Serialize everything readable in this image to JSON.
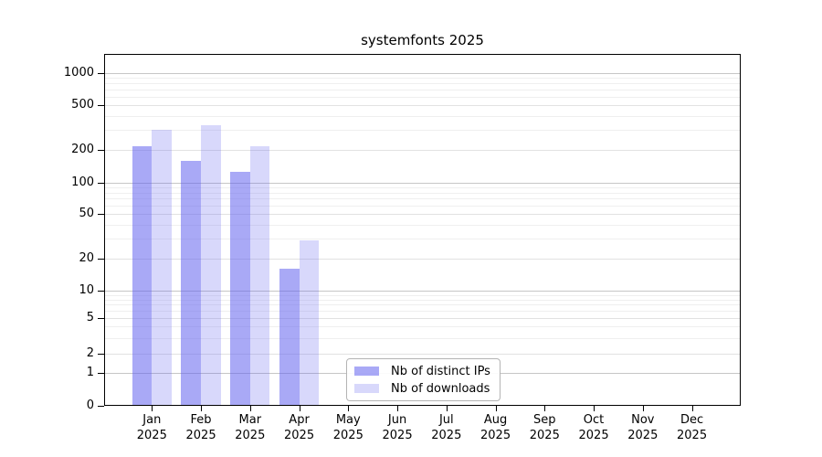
{
  "chart_data": {
    "type": "bar",
    "title": "systemfonts 2025",
    "x": [
      "Jan",
      "Feb",
      "Mar",
      "Apr",
      "May",
      "Jun",
      "Jul",
      "Aug",
      "Sep",
      "Oct",
      "Nov",
      "Dec"
    ],
    "x_year": "2025",
    "series": [
      {
        "name": "Nb of distinct IPs",
        "color": "rgba(98,98,238,0.55)",
        "values": [
          215,
          158,
          125,
          16,
          0,
          0,
          0,
          0,
          0,
          0,
          0,
          0
        ]
      },
      {
        "name": "Nb of downloads",
        "color": "rgba(98,98,238,0.25)",
        "values": [
          300,
          330,
          215,
          29,
          0,
          0,
          0,
          0,
          0,
          0,
          0,
          0
        ]
      }
    ],
    "yscale": "symlog",
    "yticks": [
      0,
      1,
      2,
      5,
      10,
      20,
      50,
      100,
      200,
      500,
      1000
    ],
    "ylim": [
      0,
      1500
    ],
    "grid": "horizontal major + minor log gridlines",
    "legend_position": "inside axes, lower center",
    "colors": {
      "distinct_ips_rendered": "#a9a9f5",
      "downloads_rendered": "#d8d8fa",
      "grid_major": "#c6c6c6",
      "grid_mid": "#e2e2e2",
      "grid_minor": "#efefef"
    }
  }
}
